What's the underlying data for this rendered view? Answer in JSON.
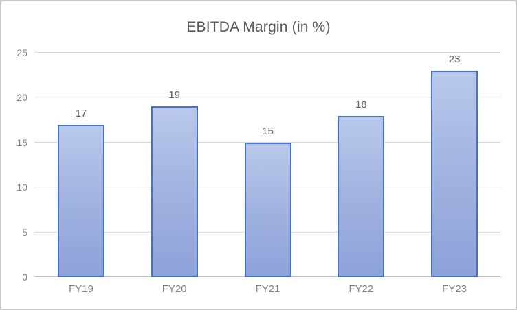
{
  "chart_title": "EBITDA Margin (in %)",
  "chart_data": {
    "type": "bar",
    "title": "EBITDA Margin (in %)",
    "categories": [
      "FY19",
      "FY20",
      "FY21",
      "FY22",
      "FY23"
    ],
    "values": [
      17,
      19,
      15,
      18,
      23
    ],
    "data_labels": [
      "17",
      "19",
      "15",
      "18",
      "23"
    ],
    "xlabel": "",
    "ylabel": "",
    "ylim": [
      0,
      25
    ],
    "ytick_step": 5,
    "ytick_labels": [
      "0",
      "5",
      "10",
      "15",
      "20",
      "25"
    ],
    "grid": true,
    "legend": "none",
    "colors": {
      "bar_fill_top": "#b9c8eb",
      "bar_fill_bottom": "#8da2d9",
      "bar_border": "#4472c4",
      "gridline": "#d9d9d9",
      "axis_line": "#bfbfbf",
      "title_text": "#595959",
      "tick_text": "#7f7f7f",
      "data_label_text": "#595959",
      "frame_border": "#c9c9c9"
    }
  }
}
